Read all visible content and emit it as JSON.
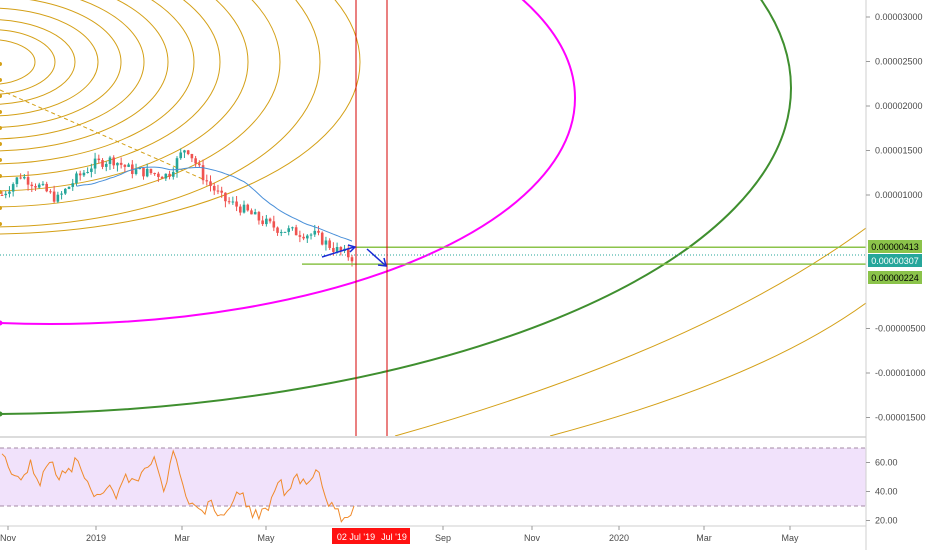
{
  "colors": {
    "candle_up": "#26a69a",
    "candle_down": "#ef5350",
    "ma_line": "#4a90d9",
    "magenta_arc": "#ff00ff",
    "green_arc": "#3f8f2f",
    "gold_arc": "#d4a017",
    "vertical_line": "#d50000",
    "hline": "#8bc34a",
    "arrow": "#1a2bd6",
    "rsi_line": "#f08a2c",
    "rsi_band": "#f1e2fb",
    "price_tag": "#26a69a",
    "level_tag": "#8bc34a",
    "date_tag": "#ff1111"
  },
  "price_tags": {
    "upper": "0.00000413",
    "current": "0.00000307",
    "lower": "0.00000224"
  },
  "date_tags": {
    "first": "02 Jul '19",
    "second": "Jul '19"
  },
  "chart_data": [
    {
      "type": "candlestick",
      "y_axis_ticks": [
        "0.00003000",
        "0.00002500",
        "0.00002000",
        "0.00001500",
        "0.00001000",
        "-0.00000500",
        "-0.00001000",
        "-0.00001500"
      ],
      "x_axis_ticks": [
        "Nov",
        "2019",
        "Mar",
        "May",
        "Sep",
        "Nov",
        "2020",
        "Mar",
        "May"
      ],
      "horizontal_levels": [
        4.13e-06,
        2.24e-06
      ],
      "last_price": 3.07e-06,
      "series": [
        {
          "values": [
            1e-05,
            1.22e-05,
            1.1e-05,
            9.5e-06,
            1.18e-05,
            1.35e-05,
            1.4e-05,
            1.28e-05,
            1.25e-05,
            1.22e-05,
            1.55e-05,
            1.18e-05,
            9.5e-06,
            8.5e-06,
            7.2e-06,
            6.2e-06,
            5.8e-06,
            5.5e-06,
            4e-06,
            3e-06
          ]
        }
      ]
    },
    {
      "type": "line",
      "y_axis_ticks": [
        "60.00",
        "40.00",
        "20.00"
      ],
      "ylim": [
        18,
        76
      ],
      "reference_lines": [
        70,
        30
      ],
      "series": [
        {
          "values": [
            66,
            52,
            48,
            62,
            44,
            60,
            48,
            56,
            61,
            47,
            38,
            42,
            35,
            52,
            48,
            56,
            64,
            40,
            68,
            45,
            32,
            27,
            34,
            24,
            29,
            38,
            30,
            21,
            27,
            46,
            40,
            52,
            45,
            55,
            36,
            28,
            22,
            30
          ]
        }
      ]
    }
  ]
}
